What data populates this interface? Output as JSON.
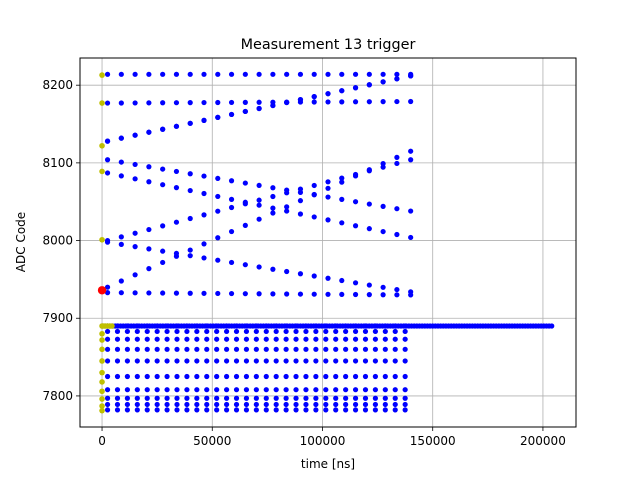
{
  "chart_data": {
    "type": "scatter",
    "title": "Measurement 13 trigger",
    "xlabel": "time [ns]",
    "ylabel": "ADC Code",
    "xlim": [
      -10000,
      215000
    ],
    "ylim": [
      7760,
      8235
    ],
    "x_ticks": [
      0,
      50000,
      100000,
      150000,
      200000
    ],
    "x_tick_labels": [
      "0",
      "50000",
      "100000",
      "150000",
      "200000"
    ],
    "y_ticks": [
      7800,
      7900,
      8000,
      8100,
      8200
    ],
    "y_tick_labels": [
      "7800",
      "7900",
      "8000",
      "8100",
      "8200"
    ],
    "grid": true,
    "colors": {
      "main": "#0000ff",
      "start": "#bfbf00",
      "trigger": "#ff0000"
    },
    "series": [
      {
        "color": "#0000ff",
        "description": "Sampled ADC codes. Bands are periodic diagonal traces in range [start,end] ns with start/end codes; flat bands are constant levels.",
        "diagonal_bands": [
          {
            "x": [
              2500,
              140000
            ],
            "y": [
              8214,
              8214
            ]
          },
          {
            "x": [
              2500,
              140000
            ],
            "y": [
              8177,
              8179
            ]
          },
          {
            "x": [
              2500,
              140000
            ],
            "y": [
              8128,
              8212
            ]
          },
          {
            "x": [
              2500,
              140000
            ],
            "y": [
              8128,
              8212
            ]
          },
          {
            "x": [
              2500,
              140000
            ],
            "y": [
              8104,
              8038
            ]
          },
          {
            "x": [
              2500,
              140000
            ],
            "y": [
              8087,
              8004
            ]
          },
          {
            "x": [
              2500,
              140000
            ],
            "y": [
              8000,
              8104
            ]
          },
          {
            "x": [
              2500,
              140000
            ],
            "y": [
              7998,
              7934
            ]
          },
          {
            "x": [
              2500,
              140000
            ],
            "y": [
              7940,
              8115
            ]
          },
          {
            "x": [
              2500,
              140000
            ],
            "y": [
              7933,
              7930
            ]
          }
        ],
        "flat_levels": {
          "x_range": [
            2500,
            140000
          ],
          "codes": [
            7890,
            7883,
            7873,
            7860,
            7845,
            7825,
            7808,
            7797,
            7789,
            7782
          ]
        },
        "baseline": {
          "x": [
            0,
            205000
          ],
          "y": 7890
        }
      },
      {
        "color": "#bfbf00",
        "description": "Start samples near t=0",
        "x": [
          0,
          0,
          0,
          0,
          0,
          0,
          0,
          0,
          0,
          0,
          0,
          0,
          0,
          0,
          0,
          0
        ],
        "y": [
          8213,
          8177,
          8122,
          8089,
          8001,
          7890,
          7880,
          7872,
          7860,
          7845,
          7830,
          7818,
          7806,
          7796,
          7787,
          7781
        ]
      },
      {
        "color": "#ff0000",
        "description": "Trigger point",
        "x": [
          0
        ],
        "y": [
          7936
        ]
      }
    ]
  }
}
